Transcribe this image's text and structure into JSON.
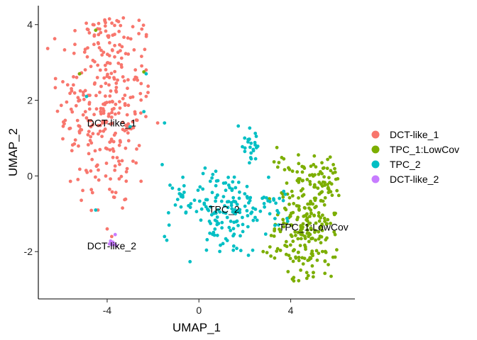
{
  "chart_data": {
    "type": "scatter",
    "title": "",
    "xlabel": "UMAP_1",
    "ylabel": "UMAP_2",
    "xlim": [
      -7,
      6.8
    ],
    "ylim": [
      -3.25,
      4.5
    ],
    "xticks": [
      -4,
      0,
      4
    ],
    "yticks": [
      -2,
      0,
      2,
      4
    ],
    "grid": false,
    "legend_position": "right",
    "series": [
      {
        "name": "DCT-like_1",
        "color": "#F8766D",
        "cluster_label": "DCT-like_1",
        "label_pos": [
          -3.8,
          1.4
        ],
        "clusters": [
          {
            "cx": -4.0,
            "cy": 1.9,
            "sx": 1.05,
            "sy": 1.45,
            "n": 300,
            "clip": [
              -6.6,
              -2.2,
              -1.3,
              4.2
            ]
          },
          {
            "cx": -4.3,
            "cy": 3.7,
            "sx": 0.35,
            "sy": 0.3,
            "n": 20,
            "clip": [
              -5.0,
              -3.6,
              3.3,
              4.15
            ]
          }
        ],
        "points": [
          [
            -3.9,
            4.15
          ],
          [
            -4.1,
            4.1
          ],
          [
            -4.4,
            -0.9
          ],
          [
            -4.0,
            -1.4
          ],
          [
            -3.8,
            -1.6
          ],
          [
            -1.8,
            1.4
          ],
          [
            -2.3,
            2.8
          ],
          [
            -5.2,
            2.0
          ]
        ]
      },
      {
        "name": "TPC_1:LowCov",
        "color": "#7CAE00",
        "cluster_label": "TPC_1:LowCov",
        "label_pos": [
          5.0,
          -1.35
        ],
        "clusters": [
          {
            "cx": 4.85,
            "cy": -1.2,
            "sx": 0.75,
            "sy": 0.95,
            "n": 280,
            "clip": [
              2.4,
              6.1,
              -2.8,
              0.6
            ]
          }
        ],
        "points": [
          [
            -4.5,
            3.85
          ],
          [
            -5.2,
            2.7
          ],
          [
            -2.4,
            2.75
          ],
          [
            3.4,
            0.75
          ],
          [
            3.7,
            0.45
          ],
          [
            4.5,
            0.25
          ],
          [
            5.6,
            0.2
          ],
          [
            2.8,
            -2.0
          ]
        ]
      },
      {
        "name": "TPC_2",
        "color": "#00BFC4",
        "cluster_label": "TPC_2",
        "label_pos": [
          1.1,
          -0.88
        ],
        "clusters": [
          {
            "cx": 1.2,
            "cy": -1.0,
            "sx": 0.9,
            "sy": 0.6,
            "n": 140,
            "clip": [
              -0.6,
              3.0,
              -2.3,
              0.3
            ]
          },
          {
            "cx": 2.2,
            "cy": 0.9,
            "sx": 0.3,
            "sy": 0.35,
            "n": 25,
            "clip": [
              1.6,
              2.8,
              0.3,
              1.5
            ]
          },
          {
            "cx": -0.7,
            "cy": -0.6,
            "sx": 0.3,
            "sy": 0.35,
            "n": 22,
            "clip": [
              -1.5,
              0.0,
              -1.2,
              0.0
            ]
          },
          {
            "cx": 3.4,
            "cy": -0.6,
            "sx": 0.35,
            "sy": 0.5,
            "n": 20,
            "clip": [
              2.8,
              4.0,
              -1.5,
              0.3
            ]
          }
        ],
        "points": [
          [
            -1.4,
            -1.7
          ],
          [
            -1.5,
            -1.6
          ],
          [
            -1.3,
            -1.3
          ],
          [
            -2.4,
            1.7
          ],
          [
            -3.0,
            1.3
          ],
          [
            -2.3,
            2.7
          ],
          [
            -4.5,
            -0.9
          ],
          [
            -1.5,
            1.4
          ],
          [
            -1.6,
            0.3
          ],
          [
            -4.9,
            2.1
          ]
        ]
      },
      {
        "name": "DCT-like_2",
        "color": "#C77CFF",
        "cluster_label": "DCT-like_2",
        "label_pos": [
          -3.8,
          -1.85
        ],
        "clusters": [],
        "points": [
          [
            -3.85,
            -1.72
          ],
          [
            -3.75,
            -1.75
          ],
          [
            -3.8,
            -1.82
          ],
          [
            -3.7,
            -1.8
          ],
          [
            -3.9,
            -1.8
          ],
          [
            -3.65,
            -1.55
          ],
          [
            -3.6,
            -1.85
          ]
        ]
      }
    ]
  }
}
